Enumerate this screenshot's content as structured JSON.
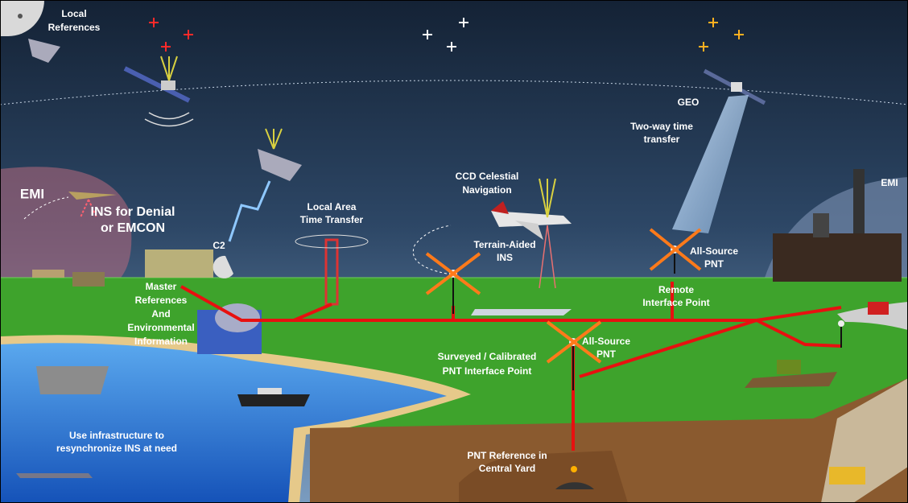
{
  "labels": [
    {
      "lines": [
        "Local",
        "References"
      ]
    },
    {
      "lines": [
        "GEO"
      ]
    },
    {
      "lines": [
        "Two-way time",
        "transfer"
      ]
    },
    {
      "lines": [
        "CCD Celestial",
        "Navigation"
      ]
    },
    {
      "lines": [
        "Local Area",
        "Time Transfer"
      ]
    },
    {
      "lines": [
        "EMI"
      ]
    },
    {
      "lines": [
        "INS for Denial",
        "or EMCON"
      ]
    },
    {
      "lines": [
        "C2"
      ]
    },
    {
      "lines": [
        "Terrain-Aided",
        "INS"
      ]
    },
    {
      "lines": [
        "All-Source",
        "PNT"
      ]
    },
    {
      "lines": [
        "Remote",
        "Interface Point"
      ]
    },
    {
      "lines": [
        "EMI"
      ]
    },
    {
      "lines": [
        "Master",
        "References",
        "And",
        "Environmental",
        "Information"
      ]
    },
    {
      "lines": [
        "All-Source",
        "PNT"
      ]
    },
    {
      "lines": [
        "Surveyed / Calibrated",
        "PNT Interface Point"
      ]
    },
    {
      "lines": [
        "Use infrastructure to",
        "resynchronize INS at need"
      ]
    },
    {
      "lines": [
        "PNT Reference in",
        "Central Yard"
      ]
    }
  ]
}
